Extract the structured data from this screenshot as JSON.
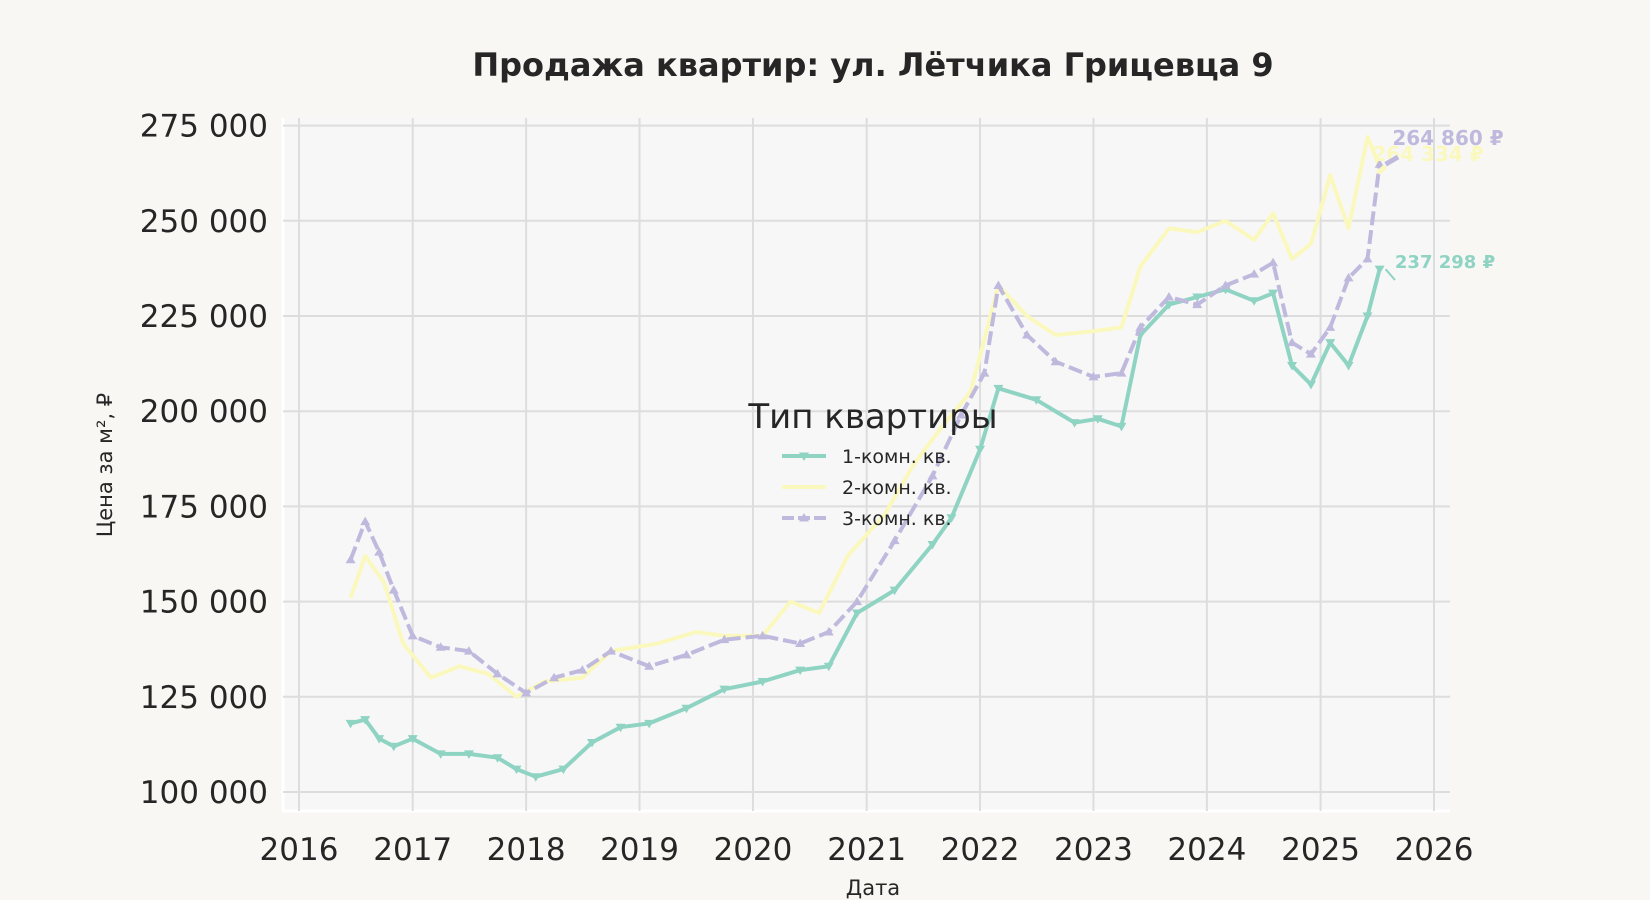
{
  "chart_data": {
    "type": "line",
    "title": "Продажа квартир: ул. Лётчика Грицевца 9",
    "xlabel": "Дата",
    "ylabel": "Цена за м², ₽",
    "x_ticks": [
      "2016",
      "2017",
      "2018",
      "2019",
      "2020",
      "2021",
      "2022",
      "2023",
      "2024",
      "2025",
      "2026"
    ],
    "y_ticks": [
      "100 000",
      "125 000",
      "150 000",
      "175 000",
      "200 000",
      "225 000",
      "250 000",
      "275 000"
    ],
    "xlim": [
      "2016-01-01",
      "2026-01-01"
    ],
    "ylim": [
      95000,
      277000
    ],
    "grid": true,
    "legend": {
      "title": "Тип квартиры",
      "placement": "center"
    },
    "series": [
      {
        "name": "1-комн. кв.",
        "color": "#8fd3c3",
        "marker": "triangle-down",
        "dashed": false,
        "last_label": "237 298 ₽",
        "last_value": 237298,
        "points": [
          [
            "2016-06-15",
            118000
          ],
          [
            "2016-08-01",
            119000
          ],
          [
            "2016-09-15",
            114000
          ],
          [
            "2016-11-01",
            112000
          ],
          [
            "2017-01-01",
            114000
          ],
          [
            "2017-04-01",
            110000
          ],
          [
            "2017-07-01",
            110000
          ],
          [
            "2017-10-01",
            109000
          ],
          [
            "2017-12-01",
            106000
          ],
          [
            "2018-02-01",
            104000
          ],
          [
            "2018-05-01",
            106000
          ],
          [
            "2018-08-01",
            113000
          ],
          [
            "2018-11-01",
            117000
          ],
          [
            "2019-02-01",
            118000
          ],
          [
            "2019-06-01",
            122000
          ],
          [
            "2019-10-01",
            127000
          ],
          [
            "2020-02-01",
            129000
          ],
          [
            "2020-06-01",
            132000
          ],
          [
            "2020-09-01",
            133000
          ],
          [
            "2020-12-01",
            147000
          ],
          [
            "2021-04-01",
            153000
          ],
          [
            "2021-08-01",
            165000
          ],
          [
            "2021-10-01",
            172000
          ],
          [
            "2022-01-01",
            190000
          ],
          [
            "2022-03-01",
            206000
          ],
          [
            "2022-07-01",
            203000
          ],
          [
            "2022-11-01",
            197000
          ],
          [
            "2023-01-15",
            198000
          ],
          [
            "2023-04-01",
            196000
          ],
          [
            "2023-06-01",
            220000
          ],
          [
            "2023-09-01",
            228000
          ],
          [
            "2023-12-01",
            230000
          ],
          [
            "2024-03-01",
            232000
          ],
          [
            "2024-06-01",
            229000
          ],
          [
            "2024-08-01",
            231000
          ],
          [
            "2024-10-01",
            212000
          ],
          [
            "2024-12-01",
            207000
          ],
          [
            "2025-02-01",
            218000
          ],
          [
            "2025-04-01",
            212000
          ],
          [
            "2025-06-01",
            225000
          ],
          [
            "2025-07-10",
            237298
          ]
        ]
      },
      {
        "name": "2-комн. кв.",
        "color": "#fbf8bd",
        "marker": "none",
        "dashed": false,
        "last_label": "264 334 ₽",
        "last_value": 264334,
        "points": [
          [
            "2016-06-15",
            151000
          ],
          [
            "2016-08-01",
            162000
          ],
          [
            "2016-10-01",
            155000
          ],
          [
            "2016-12-01",
            139000
          ],
          [
            "2017-03-01",
            130000
          ],
          [
            "2017-06-01",
            133000
          ],
          [
            "2017-09-01",
            131000
          ],
          [
            "2017-12-01",
            125000
          ],
          [
            "2018-03-01",
            129000
          ],
          [
            "2018-07-01",
            130000
          ],
          [
            "2018-10-01",
            137000
          ],
          [
            "2019-03-01",
            139000
          ],
          [
            "2019-07-01",
            142000
          ],
          [
            "2019-10-01",
            141000
          ],
          [
            "2020-02-01",
            141000
          ],
          [
            "2020-05-01",
            150000
          ],
          [
            "2020-08-01",
            147000
          ],
          [
            "2020-11-01",
            162000
          ],
          [
            "2021-03-01",
            173000
          ],
          [
            "2021-06-01",
            186000
          ],
          [
            "2021-09-01",
            196000
          ],
          [
            "2021-12-01",
            205000
          ],
          [
            "2022-03-01",
            233000
          ],
          [
            "2022-06-01",
            225000
          ],
          [
            "2022-09-01",
            220000
          ],
          [
            "2023-01-01",
            221000
          ],
          [
            "2023-04-01",
            222000
          ],
          [
            "2023-06-01",
            238000
          ],
          [
            "2023-09-01",
            248000
          ],
          [
            "2023-12-01",
            247000
          ],
          [
            "2024-03-01",
            250000
          ],
          [
            "2024-06-01",
            245000
          ],
          [
            "2024-08-01",
            252000
          ],
          [
            "2024-10-01",
            240000
          ],
          [
            "2024-12-01",
            244000
          ],
          [
            "2025-02-01",
            262000
          ],
          [
            "2025-04-01",
            248000
          ],
          [
            "2025-06-01",
            272000
          ],
          [
            "2025-07-10",
            264334
          ]
        ]
      },
      {
        "name": "3-комн. кв.",
        "color": "#bfbadd",
        "marker": "triangle-up",
        "dashed": true,
        "last_label": "264 860 ₽",
        "last_value": 264860,
        "points": [
          [
            "2016-06-15",
            161000
          ],
          [
            "2016-08-01",
            171000
          ],
          [
            "2016-09-15",
            163000
          ],
          [
            "2016-11-01",
            153000
          ],
          [
            "2017-01-01",
            141000
          ],
          [
            "2017-04-01",
            138000
          ],
          [
            "2017-07-01",
            137000
          ],
          [
            "2017-10-01",
            131000
          ],
          [
            "2018-01-01",
            126000
          ],
          [
            "2018-04-01",
            130000
          ],
          [
            "2018-07-01",
            132000
          ],
          [
            "2018-10-01",
            137000
          ],
          [
            "2019-02-01",
            133000
          ],
          [
            "2019-06-01",
            136000
          ],
          [
            "2019-10-01",
            140000
          ],
          [
            "2020-02-01",
            141000
          ],
          [
            "2020-06-01",
            139000
          ],
          [
            "2020-09-01",
            142000
          ],
          [
            "2020-12-01",
            150000
          ],
          [
            "2021-04-01",
            166000
          ],
          [
            "2021-08-01",
            183000
          ],
          [
            "2021-11-01",
            199000
          ],
          [
            "2022-01-15",
            210000
          ],
          [
            "2022-03-01",
            233000
          ],
          [
            "2022-06-01",
            220000
          ],
          [
            "2022-09-01",
            213000
          ],
          [
            "2023-01-01",
            209000
          ],
          [
            "2023-04-01",
            210000
          ],
          [
            "2023-06-01",
            222000
          ],
          [
            "2023-09-01",
            230000
          ],
          [
            "2023-12-01",
            228000
          ],
          [
            "2024-03-01",
            233000
          ],
          [
            "2024-06-01",
            236000
          ],
          [
            "2024-08-01",
            239000
          ],
          [
            "2024-10-01",
            218000
          ],
          [
            "2024-12-01",
            215000
          ],
          [
            "2025-02-01",
            222000
          ],
          [
            "2025-04-01",
            235000
          ],
          [
            "2025-06-01",
            240000
          ],
          [
            "2025-07-10",
            264860
          ]
        ]
      }
    ]
  }
}
